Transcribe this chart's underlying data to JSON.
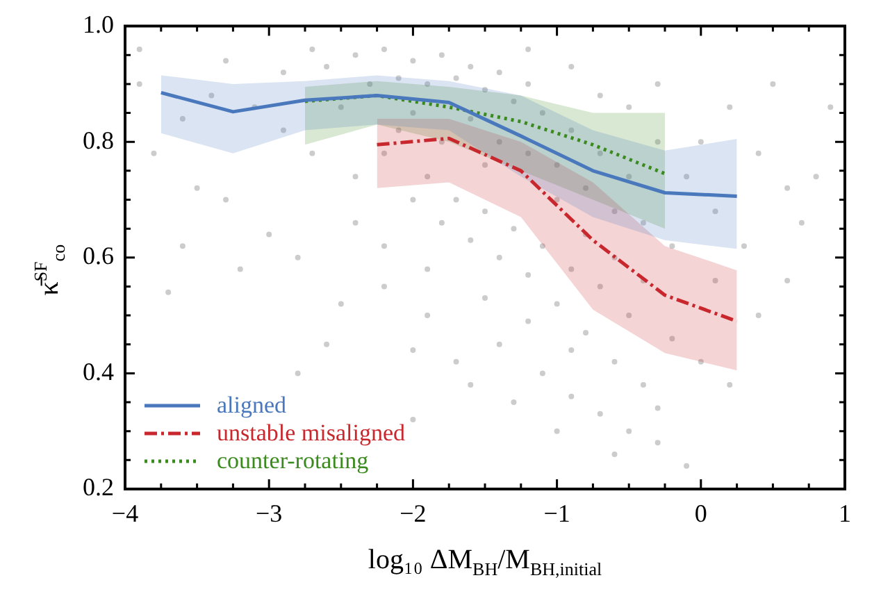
{
  "chart_data": {
    "type": "line",
    "xlabel": "log₁₀ ΔM$_{BH}$/M$_{BH,initial}$",
    "ylabel": "κ̄$^{SF}$$_{co}$",
    "xlim": [
      -4,
      1
    ],
    "ylim": [
      0.2,
      1.0
    ],
    "xticks": [
      {
        "value": -4,
        "label": "−4"
      },
      {
        "value": -3.75,
        "label": null
      },
      {
        "value": -3.5,
        "label": null
      },
      {
        "value": -3.25,
        "label": null
      },
      {
        "value": -3,
        "label": "−3"
      },
      {
        "value": -2.75,
        "label": null
      },
      {
        "value": -2.5,
        "label": null
      },
      {
        "value": -2.25,
        "label": null
      },
      {
        "value": -2,
        "label": "−2"
      },
      {
        "value": -1.75,
        "label": null
      },
      {
        "value": -1.5,
        "label": null
      },
      {
        "value": -1.25,
        "label": null
      },
      {
        "value": -1,
        "label": "−1"
      },
      {
        "value": -0.75,
        "label": null
      },
      {
        "value": -0.5,
        "label": null
      },
      {
        "value": -0.25,
        "label": null
      },
      {
        "value": 0,
        "label": "0"
      },
      {
        "value": 0.25,
        "label": null
      },
      {
        "value": 0.5,
        "label": null
      },
      {
        "value": 0.75,
        "label": null
      },
      {
        "value": 1,
        "label": "1"
      }
    ],
    "yticks": [
      {
        "value": 0.2,
        "label": "0.2"
      },
      {
        "value": 0.25,
        "label": null
      },
      {
        "value": 0.3,
        "label": null
      },
      {
        "value": 0.35,
        "label": null
      },
      {
        "value": 0.4,
        "label": "0.4"
      },
      {
        "value": 0.45,
        "label": null
      },
      {
        "value": 0.5,
        "label": null
      },
      {
        "value": 0.55,
        "label": null
      },
      {
        "value": 0.6,
        "label": "0.6"
      },
      {
        "value": 0.65,
        "label": null
      },
      {
        "value": 0.7,
        "label": null
      },
      {
        "value": 0.75,
        "label": null
      },
      {
        "value": 0.8,
        "label": "0.8"
      },
      {
        "value": 0.85,
        "label": null
      },
      {
        "value": 0.9,
        "label": null
      },
      {
        "value": 0.95,
        "label": null
      },
      {
        "value": 1.0,
        "label": "1.0"
      }
    ],
    "grid": false,
    "legend": "bottom left",
    "series": [
      {
        "type": "scatter",
        "color": "#cccccc",
        "marker": "circle",
        "x": [
          -2.6,
          -2.4,
          -2.2,
          -2.0,
          -1.8,
          -1.6,
          -1.4,
          -1.2,
          -2.3,
          -2.1,
          -1.9,
          -1.7,
          -1.5,
          -1.3,
          -1.1,
          -0.9,
          -2.5,
          -2.0,
          -1.6,
          -1.4,
          -1.2,
          -1.0,
          -0.8,
          -0.6,
          -2.2,
          -1.9,
          -1.7,
          -1.5,
          -1.3,
          -1.1,
          -0.9,
          -0.7,
          -0.5,
          -1.4,
          -1.2,
          -1.0,
          -0.8,
          -0.6,
          -0.4,
          -1.6,
          -1.8,
          -2.0,
          -2.4,
          -2.7,
          -2.9,
          -3.1,
          -3.4,
          -3.6,
          -3.9,
          -3.8,
          -3.5,
          -3.3,
          -3.0,
          -2.8,
          -3.2,
          -3.7,
          -2.5,
          -2.2,
          -1.9,
          -2.6,
          -1.7,
          -1.4,
          -1.1,
          -0.9,
          -0.7,
          -0.5,
          -0.3,
          -0.1,
          -1.3,
          -1.6,
          -2.0,
          -1.0,
          -0.2,
          0.0,
          0.2,
          0.4,
          0.6,
          0.3,
          0.1,
          -0.1,
          0.0,
          0.2,
          0.4,
          0.6,
          0.7,
          0.8,
          0.9,
          0.5,
          -0.3,
          -0.5,
          -0.3,
          -0.2,
          -0.4,
          -0.6,
          -0.8,
          -1.0,
          -0.7,
          -0.5,
          -0.4,
          -3.9,
          -3.3,
          -2.9,
          -2.7,
          -1.2,
          -0.9,
          -0.7,
          -1.5,
          -1.8,
          -2.1,
          -2.4,
          -2.2,
          -1.9,
          -1.5,
          -1.2,
          -0.9,
          -3.6,
          -2.8,
          -0.6,
          -0.3,
          0.1,
          -2.0
        ],
        "values": [
          0.93,
          0.95,
          0.96,
          0.94,
          0.95,
          0.93,
          0.92,
          0.9,
          0.9,
          0.91,
          0.9,
          0.91,
          0.89,
          0.87,
          0.85,
          0.82,
          0.86,
          0.85,
          0.84,
          0.8,
          0.78,
          0.76,
          0.72,
          0.68,
          0.78,
          0.74,
          0.7,
          0.68,
          0.65,
          0.62,
          0.58,
          0.55,
          0.5,
          0.6,
          0.57,
          0.52,
          0.47,
          0.42,
          0.38,
          0.63,
          0.66,
          0.7,
          0.74,
          0.78,
          0.82,
          0.86,
          0.88,
          0.84,
          0.9,
          0.78,
          0.72,
          0.7,
          0.64,
          0.6,
          0.58,
          0.54,
          0.52,
          0.55,
          0.5,
          0.45,
          0.42,
          0.45,
          0.4,
          0.36,
          0.33,
          0.3,
          0.28,
          0.24,
          0.35,
          0.38,
          0.32,
          0.3,
          0.46,
          0.42,
          0.38,
          0.5,
          0.56,
          0.62,
          0.68,
          0.74,
          0.8,
          0.86,
          0.78,
          0.72,
          0.66,
          0.74,
          0.86,
          0.9,
          0.9,
          0.86,
          0.8,
          0.62,
          0.56,
          0.6,
          0.64,
          0.7,
          0.78,
          0.74,
          0.66,
          0.96,
          0.94,
          0.92,
          0.96,
          0.96,
          0.93,
          0.88,
          0.76,
          0.8,
          0.82,
          0.66,
          0.62,
          0.58,
          0.53,
          0.49,
          0.44,
          0.62,
          0.4,
          0.26,
          0.34,
          0.56,
          0.44
        ]
      },
      {
        "name": "aligned",
        "color": "#4a78bc",
        "line_style": "solid",
        "x": [
          -3.75,
          -3.25,
          -2.75,
          -2.25,
          -1.75,
          -1.25,
          -0.75,
          -0.25,
          0.25
        ],
        "values": [
          0.885,
          0.852,
          0.872,
          0.88,
          0.868,
          0.81,
          0.75,
          0.712,
          0.706
        ],
        "lower": [
          0.815,
          0.78,
          0.82,
          0.83,
          0.82,
          0.74,
          0.67,
          0.63,
          0.615
        ],
        "upper": [
          0.915,
          0.9,
          0.905,
          0.915,
          0.905,
          0.88,
          0.82,
          0.785,
          0.805
        ]
      },
      {
        "name": "unstable misaligned",
        "color": "#c8282d",
        "line_style": "dashdot",
        "x": [
          -2.25,
          -1.75,
          -1.25,
          -0.75,
          -0.25,
          0.25
        ],
        "values": [
          0.795,
          0.806,
          0.75,
          0.63,
          0.535,
          0.49
        ],
        "lower": [
          0.72,
          0.73,
          0.67,
          0.51,
          0.435,
          0.405
        ],
        "upper": [
          0.84,
          0.84,
          0.8,
          0.73,
          0.62,
          0.578
        ]
      },
      {
        "name": "counter-rotating",
        "color": "#3a8a1e",
        "line_style": "dotted",
        "x": [
          -2.75,
          -2.25,
          -1.75,
          -1.25,
          -0.75,
          -0.25
        ],
        "values": [
          0.87,
          0.88,
          0.86,
          0.835,
          0.795,
          0.745
        ],
        "lower": [
          0.795,
          0.83,
          0.8,
          0.75,
          0.7,
          0.65
        ],
        "upper": [
          0.895,
          0.905,
          0.895,
          0.88,
          0.85,
          0.85
        ]
      }
    ]
  }
}
